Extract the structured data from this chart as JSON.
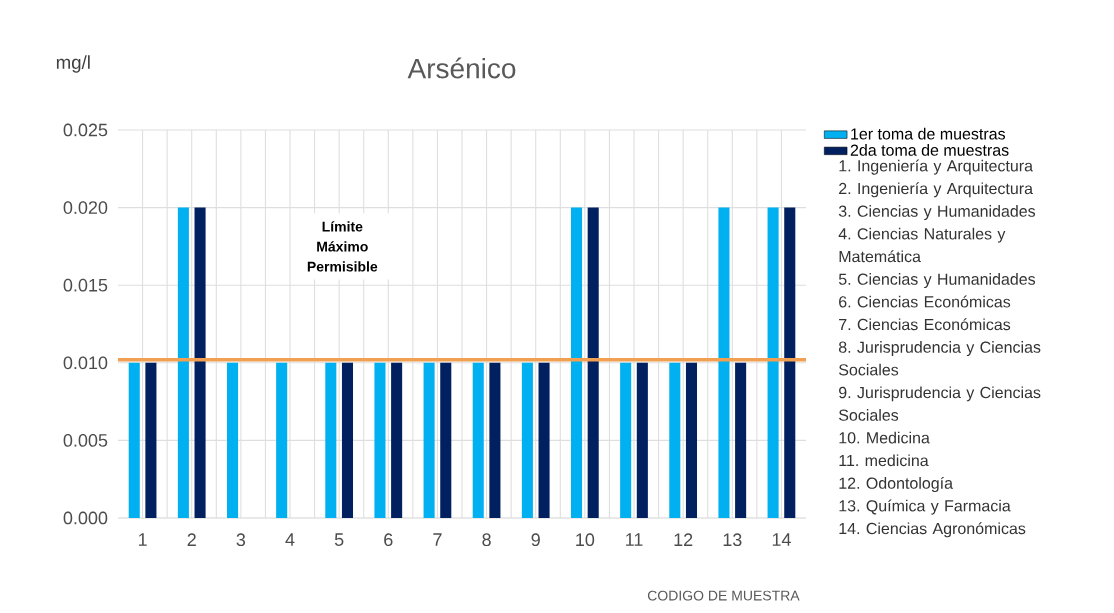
{
  "chart_data": {
    "type": "bar",
    "title": "Arsénico",
    "ylabel": "mg/l",
    "xlabel": "CODIGO DE MUESTRA",
    "categories": [
      "1",
      "2",
      "3",
      "4",
      "5",
      "6",
      "7",
      "8",
      "9",
      "10",
      "11",
      "12",
      "13",
      "14"
    ],
    "series": [
      {
        "name": "1er toma de muestras",
        "color": "#00b0f0",
        "values": [
          0.01,
          0.02,
          0.01,
          0.01,
          0.01,
          0.01,
          0.01,
          0.01,
          0.01,
          0.02,
          0.01,
          0.01,
          0.02,
          0.02
        ]
      },
      {
        "name": "2da toma de muestras",
        "color": "#002060",
        "values": [
          0.01,
          0.02,
          null,
          null,
          0.01,
          0.01,
          0.01,
          0.01,
          0.01,
          0.02,
          0.01,
          0.01,
          0.01,
          0.02
        ]
      }
    ],
    "ylim": [
      0,
      0.025
    ],
    "yticks": [
      {
        "value": 0,
        "label": "0.000"
      },
      {
        "value": 0.005,
        "label": "0.005"
      },
      {
        "value": 0.01,
        "label": "0.010"
      },
      {
        "value": 0.015,
        "label": "0.015"
      },
      {
        "value": 0.02,
        "label": "0.020"
      },
      {
        "value": 0.025,
        "label": "0.025"
      }
    ],
    "ref_lines": [
      {
        "axis": "y",
        "value": 0.0102,
        "color": "#f0a050"
      }
    ],
    "grid": true,
    "legend": "right",
    "annotations": [
      "Límite Máximo Permisible",
      "1. Ingeniería y Arquitectura",
      "2. Ingeniería y Arquitectura",
      "3. Ciencias y Humanidades",
      "4. Ciencias Naturales y Matemática",
      "5. Ciencias y Humanidades",
      "6. Ciencias Económicas",
      "7. Ciencias Económicas",
      "8. Jurisprudencia y Ciencias Sociales",
      "9. Jurisprudencia y Ciencias Sociales",
      "10. Medicina",
      "11. medicina",
      "12. Odontología",
      "13. Química y Farmacia",
      "14. Ciencias Agronómicas"
    ]
  }
}
